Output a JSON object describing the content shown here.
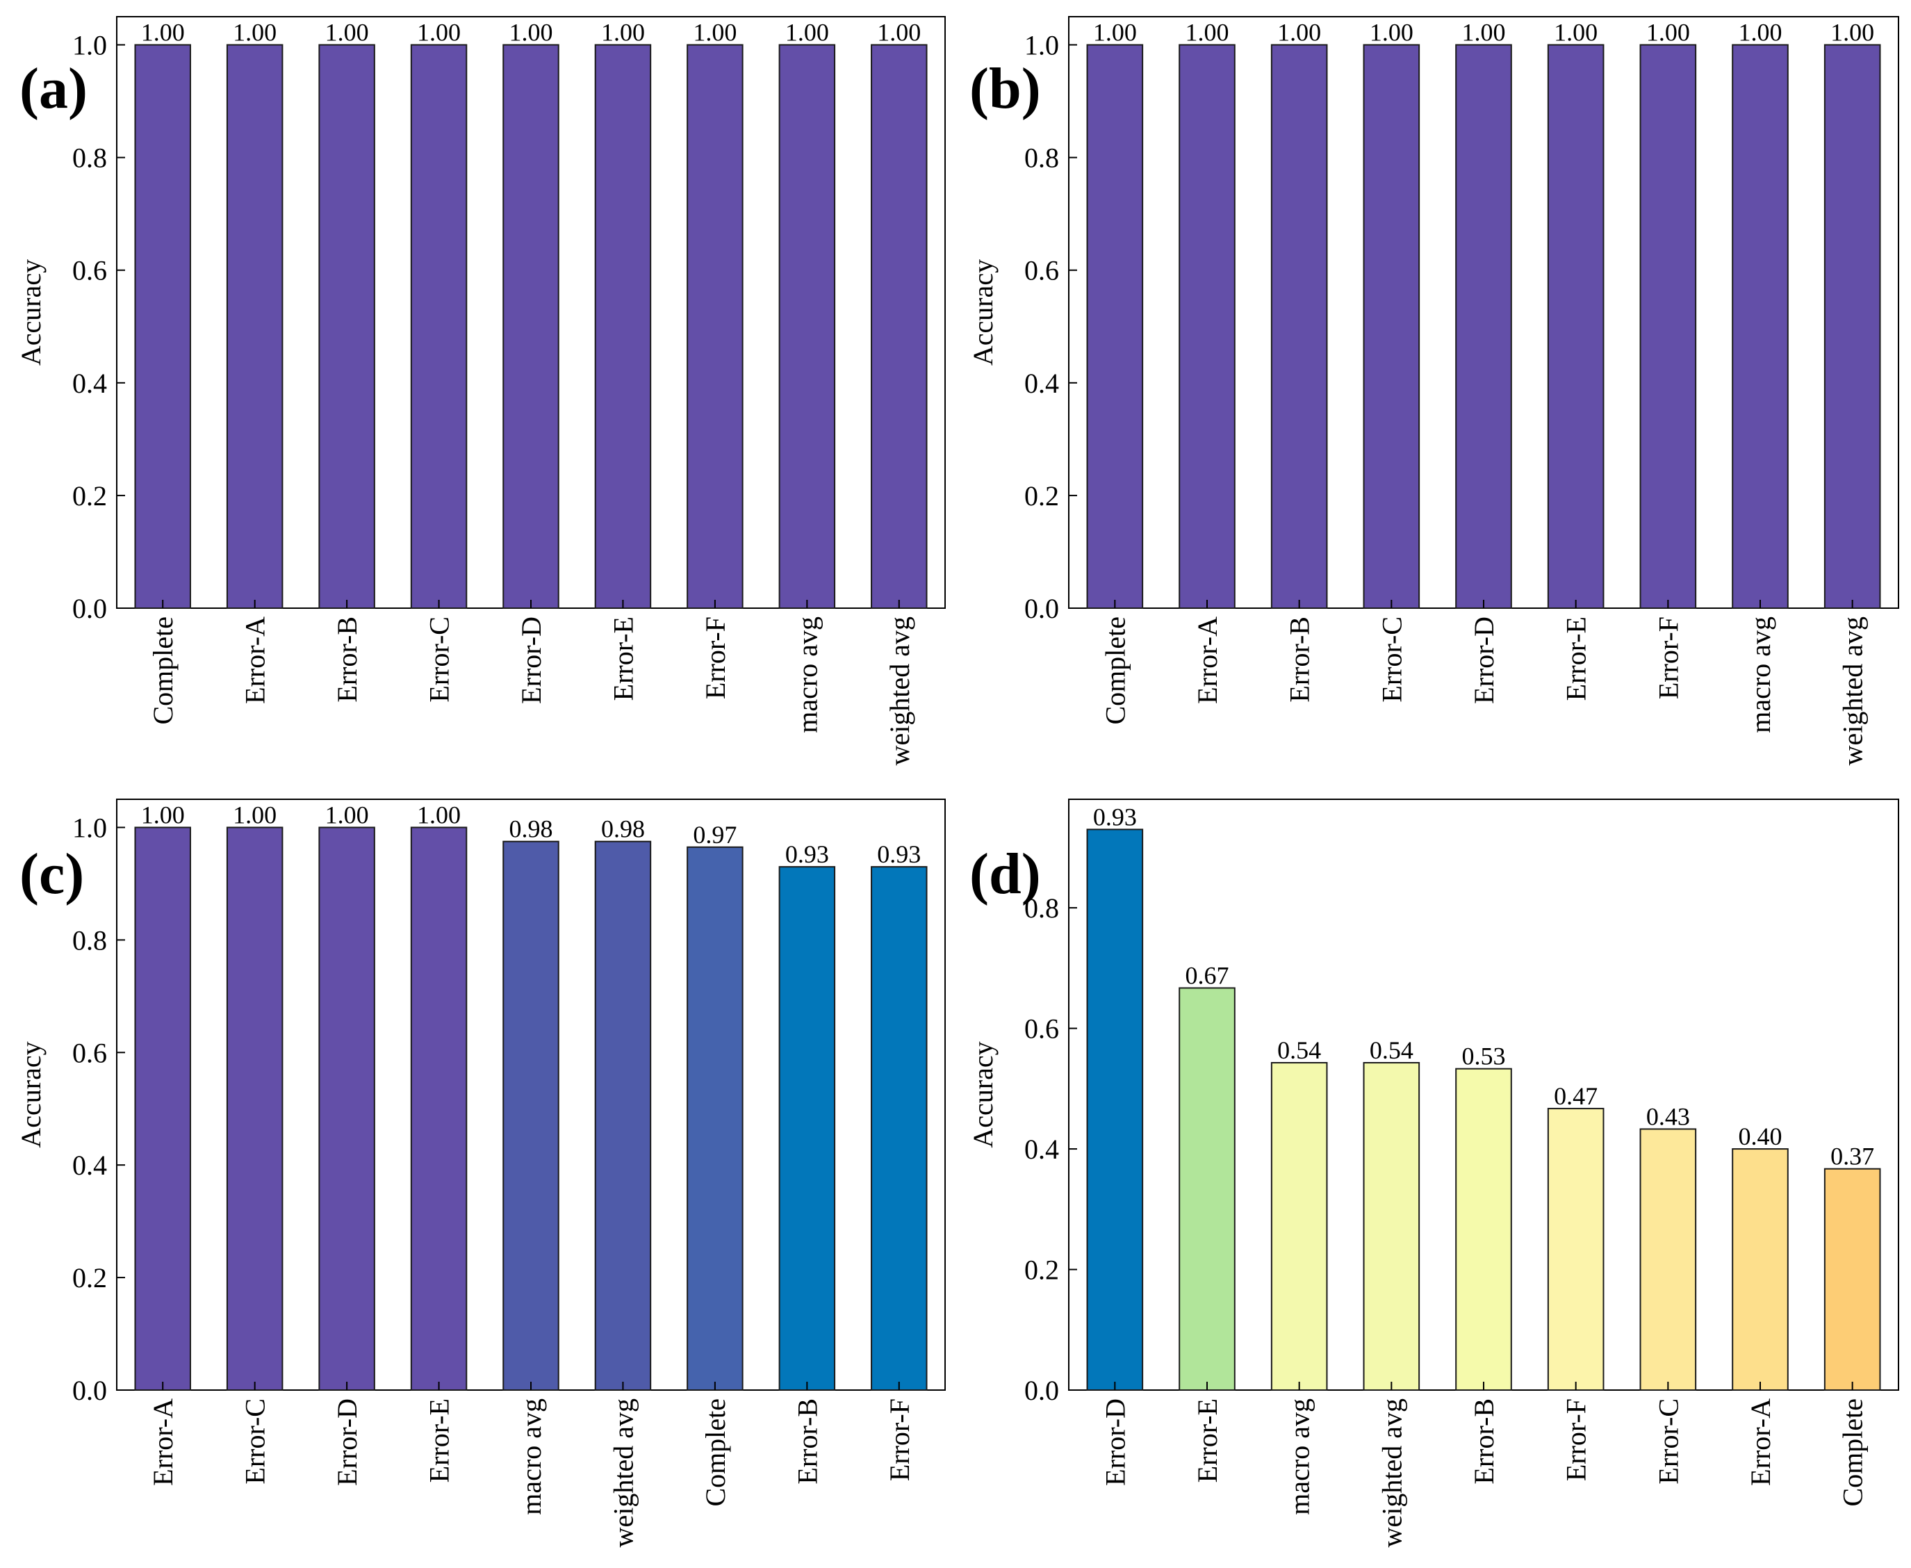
{
  "chart_data": [
    {
      "type": "bar",
      "panel_label": "(a)",
      "ylabel": "Accuracy",
      "ylim": [
        0,
        1.05
      ],
      "yticks": [
        "0.0",
        "0.2",
        "0.4",
        "0.6",
        "0.8",
        "1.0"
      ],
      "categories": [
        "Complete",
        "Error-A",
        "Error-B",
        "Error-C",
        "Error-D",
        "Error-E",
        "Error-F",
        "macro avg",
        "weighted avg"
      ],
      "values": [
        1.0,
        1.0,
        1.0,
        1.0,
        1.0,
        1.0,
        1.0,
        1.0,
        1.0
      ],
      "labels": [
        "1.00",
        "1.00",
        "1.00",
        "1.00",
        "1.00",
        "1.00",
        "1.00",
        "1.00",
        "1.00"
      ],
      "colors": [
        "#634fa8",
        "#634fa8",
        "#634fa8",
        "#634fa8",
        "#634fa8",
        "#634fa8",
        "#634fa8",
        "#634fa8",
        "#634fa8"
      ]
    },
    {
      "type": "bar",
      "panel_label": "(b)",
      "ylabel": "Accuracy",
      "ylim": [
        0,
        1.05
      ],
      "yticks": [
        "0.0",
        "0.2",
        "0.4",
        "0.6",
        "0.8",
        "1.0"
      ],
      "categories": [
        "Complete",
        "Error-A",
        "Error-B",
        "Error-C",
        "Error-D",
        "Error-E",
        "Error-F",
        "macro avg",
        "weighted avg"
      ],
      "values": [
        1.0,
        1.0,
        1.0,
        1.0,
        1.0,
        1.0,
        1.0,
        1.0,
        1.0
      ],
      "labels": [
        "1.00",
        "1.00",
        "1.00",
        "1.00",
        "1.00",
        "1.00",
        "1.00",
        "1.00",
        "1.00"
      ],
      "colors": [
        "#634fa8",
        "#634fa8",
        "#634fa8",
        "#634fa8",
        "#634fa8",
        "#634fa8",
        "#634fa8",
        "#634fa8",
        "#634fa8"
      ]
    },
    {
      "type": "bar",
      "panel_label": "(c)",
      "ylabel": "Accuracy",
      "ylim": [
        0,
        1.05
      ],
      "yticks": [
        "0.0",
        "0.2",
        "0.4",
        "0.6",
        "0.8",
        "1.0"
      ],
      "categories": [
        "Error-A",
        "Error-C",
        "Error-D",
        "Error-E",
        "macro avg",
        "weighted avg",
        "Complete",
        "Error-B",
        "Error-F"
      ],
      "values": [
        1.0,
        1.0,
        1.0,
        1.0,
        0.975,
        0.975,
        0.965,
        0.93,
        0.93
      ],
      "labels": [
        "1.00",
        "1.00",
        "1.00",
        "1.00",
        "0.98",
        "0.98",
        "0.97",
        "0.93",
        "0.93"
      ],
      "colors": [
        "#634fa8",
        "#634fa8",
        "#634fa8",
        "#634fa8",
        "#4f5ba9",
        "#4f5ba9",
        "#4563ad",
        "#0277ba",
        "#0277ba"
      ]
    },
    {
      "type": "bar",
      "panel_label": "(d)",
      "ylabel": "Accuracy",
      "ylim": [
        0,
        0.98
      ],
      "yticks": [
        "0.0",
        "0.2",
        "0.4",
        "0.6",
        "0.8"
      ],
      "categories": [
        "Error-D",
        "Error-E",
        "macro avg",
        "weighted avg",
        "Error-B",
        "Error-F",
        "Error-C",
        "Error-A",
        "Complete"
      ],
      "values": [
        0.93,
        0.667,
        0.543,
        0.543,
        0.533,
        0.467,
        0.433,
        0.4,
        0.367
      ],
      "labels": [
        "0.93",
        "0.67",
        "0.54",
        "0.54",
        "0.53",
        "0.47",
        "0.43",
        "0.40",
        "0.37"
      ],
      "colors": [
        "#0277ba",
        "#b1e59a",
        "#f3f9ad",
        "#f3f9ad",
        "#f5faab",
        "#fcf4ab",
        "#fde89a",
        "#fddf8c",
        "#fdcd75"
      ]
    }
  ]
}
